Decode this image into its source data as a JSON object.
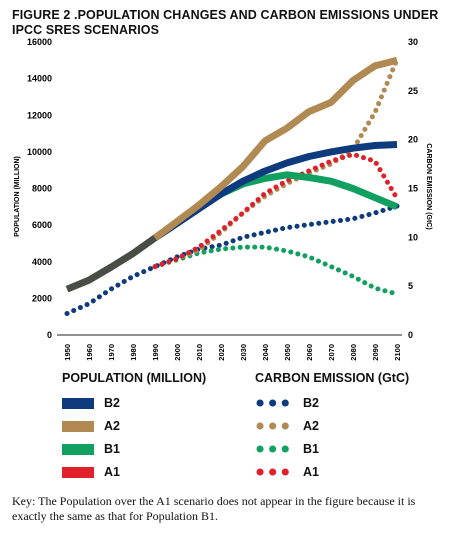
{
  "title": "FIGURE 2 .POPULATION CHANGES AND CARBON EMISSIONS UNDER IPCC SRES SCENARIOS",
  "legend": {
    "population_heading": "POPULATION (MILLION)",
    "carbon_heading": "CARBON EMISSION (GtC)",
    "items": [
      "B2",
      "A2",
      "B1",
      "A1"
    ]
  },
  "key_text": "Key: The Population over the A1 scenario does not appear in the figure because it is exactly the same as that for Population B1.",
  "chart_data": {
    "type": "line",
    "x": [
      1950,
      1960,
      1970,
      1980,
      1990,
      2000,
      2010,
      2020,
      2030,
      2040,
      2050,
      2060,
      2070,
      2080,
      2090,
      2100
    ],
    "x_tick_labels": [
      "1950",
      "1960",
      "1970",
      "1980",
      "1990",
      "2000",
      "2010",
      "2020",
      "2030",
      "2040",
      "2050",
      "2060",
      "2070",
      "2080",
      "2090",
      "2100"
    ],
    "y_left_label": "POPULATION (MILLION)",
    "y_left_lim": [
      0,
      16000
    ],
    "y_left_ticks": [
      "0",
      "2000",
      "4000",
      "6000",
      "8000",
      "10000",
      "12000",
      "14000",
      "16000"
    ],
    "y_right_label": "CARBON EMISSION (GtC)",
    "y_right_lim": [
      0,
      30
    ],
    "y_right_ticks": [
      "0",
      "5",
      "10",
      "15",
      "20",
      "25",
      "30"
    ],
    "colors": {
      "historical": "#4a4d45",
      "B2": "#0e3a7e",
      "A2": "#b08a52",
      "B1": "#12a060",
      "A1": "#e0202a"
    },
    "population_historical": {
      "x": [
        1950,
        1960,
        1970,
        1980,
        1990
      ],
      "values": [
        2500,
        3000,
        3700,
        4450,
        5300
      ]
    },
    "population_series": [
      {
        "name": "B2",
        "x": [
          1990,
          2000,
          2010,
          2020,
          2030,
          2040,
          2050,
          2060,
          2070,
          2080,
          2090,
          2100
        ],
        "values": [
          5300,
          6100,
          6900,
          7700,
          8400,
          8950,
          9400,
          9750,
          10000,
          10200,
          10350,
          10400
        ]
      },
      {
        "name": "A2",
        "x": [
          1990,
          2000,
          2010,
          2020,
          2030,
          2040,
          2050,
          2060,
          2070,
          2080,
          2090,
          2100
        ],
        "values": [
          5300,
          6200,
          7100,
          8100,
          9200,
          10600,
          11300,
          12200,
          12700,
          13900,
          14700,
          15000
        ]
      },
      {
        "name": "B1",
        "x": [
          1990,
          2000,
          2010,
          2020,
          2030,
          2040,
          2050,
          2060,
          2070,
          2080,
          2090,
          2100
        ],
        "values": [
          5300,
          6100,
          6900,
          7700,
          8250,
          8550,
          8750,
          8600,
          8400,
          8000,
          7500,
          7000
        ]
      }
    ],
    "carbon_series": [
      {
        "name": "B2",
        "x": [
          1950,
          1960,
          1970,
          1980,
          1990,
          2000,
          2010,
          2020,
          2030,
          2040,
          2050,
          2060,
          2070,
          2080,
          2090,
          2100
        ],
        "values": [
          2.2,
          3.2,
          4.7,
          6.0,
          7.0,
          8.0,
          8.8,
          9.2,
          10.0,
          10.5,
          11.0,
          11.3,
          11.6,
          11.9,
          12.5,
          13.2
        ]
      },
      {
        "name": "A2",
        "x": [
          1990,
          2000,
          2010,
          2020,
          2030,
          2040,
          2050,
          2060,
          2070,
          2080,
          2090,
          2100
        ],
        "values": [
          7.0,
          7.8,
          8.7,
          10.5,
          12.5,
          14.2,
          15.5,
          16.6,
          17.5,
          19.0,
          22.8,
          28.2
        ]
      },
      {
        "name": "B1",
        "x": [
          1990,
          2000,
          2010,
          2020,
          2030,
          2040,
          2050,
          2060,
          2070,
          2080,
          2090,
          2100
        ],
        "values": [
          7.0,
          7.7,
          8.4,
          8.8,
          9.0,
          9.0,
          8.6,
          8.0,
          7.0,
          6.0,
          4.8,
          4.2
        ]
      },
      {
        "name": "A1",
        "x": [
          1990,
          2000,
          2010,
          2020,
          2030,
          2040,
          2050,
          2060,
          2070,
          2080,
          2090,
          2100
        ],
        "values": [
          7.0,
          7.8,
          9.0,
          10.7,
          12.5,
          14.5,
          15.8,
          16.8,
          17.8,
          18.5,
          17.8,
          14.0
        ]
      }
    ]
  }
}
